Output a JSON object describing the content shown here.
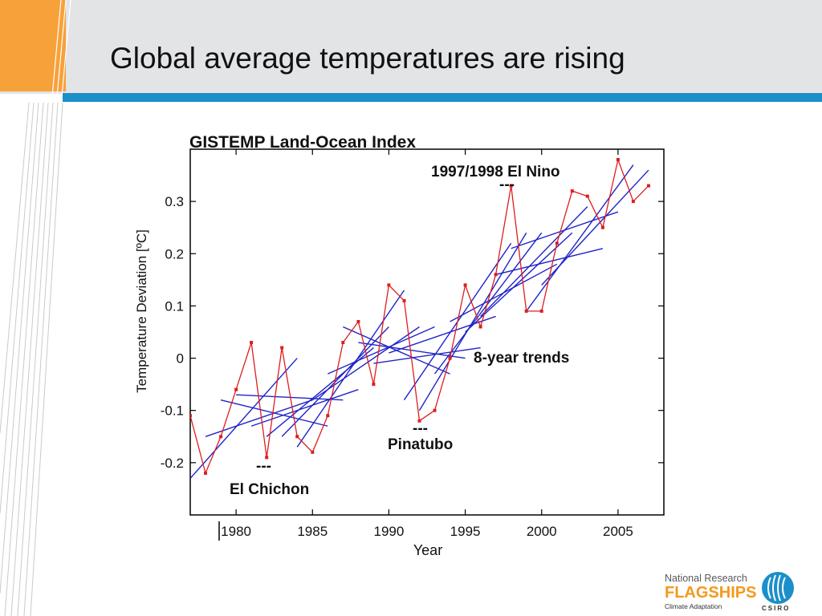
{
  "slide": {
    "title": "Global average temperatures are rising"
  },
  "colors": {
    "header_gray": "#e3e4e6",
    "orange_accent": "#f7a13a",
    "blue_band": "#1a8fc9",
    "data_series": "#dd1e1e",
    "trend_lines": "#1f24c8"
  },
  "chart_data": {
    "type": "line",
    "title": "GISTEMP Land-Ocean Index",
    "xlabel": "Year",
    "ylabel": "Temperature Deviation [ºC]",
    "xlim": [
      1977,
      2008
    ],
    "ylim": [
      -0.3,
      0.4
    ],
    "xticks": [
      "1980",
      "1985",
      "1990",
      "1995",
      "2000",
      "2005"
    ],
    "yticks": [
      "-0.2",
      "-0.1",
      "0",
      "0.1",
      "0.2",
      "0.3"
    ],
    "grid": false,
    "x": [
      1977,
      1978,
      1979,
      1980,
      1981,
      1982,
      1983,
      1984,
      1985,
      1986,
      1987,
      1988,
      1989,
      1990,
      1991,
      1992,
      1993,
      1994,
      1995,
      1996,
      1997,
      1998,
      1999,
      2000,
      2001,
      2002,
      2003,
      2004,
      2005,
      2006,
      2007
    ],
    "series": [
      {
        "values": [
          -0.11,
          -0.22,
          -0.15,
          -0.06,
          0.03,
          -0.19,
          0.02,
          -0.15,
          -0.18,
          -0.11,
          0.03,
          0.07,
          -0.05,
          0.14,
          0.11,
          -0.12,
          -0.1,
          0.0,
          0.14,
          0.06,
          0.16,
          0.33,
          0.09,
          0.09,
          0.22,
          0.32,
          0.31,
          0.25,
          0.38,
          0.3,
          0.33
        ]
      }
    ],
    "trend_lines": [
      {
        "start": 1977,
        "end": 1984,
        "y0": -0.23,
        "y1": 0.0
      },
      {
        "start": 1978,
        "end": 1985,
        "y0": -0.15,
        "y1": -0.08
      },
      {
        "start": 1979,
        "end": 1986,
        "y0": -0.08,
        "y1": -0.13
      },
      {
        "start": 1980,
        "end": 1987,
        "y0": -0.07,
        "y1": -0.08
      },
      {
        "start": 1981,
        "end": 1988,
        "y0": -0.13,
        "y1": -0.06
      },
      {
        "start": 1982,
        "end": 1989,
        "y0": -0.15,
        "y1": 0.02
      },
      {
        "start": 1983,
        "end": 1990,
        "y0": -0.15,
        "y1": 0.06
      },
      {
        "start": 1984,
        "end": 1991,
        "y0": -0.17,
        "y1": 0.13
      },
      {
        "start": 1985,
        "end": 1992,
        "y0": -0.08,
        "y1": 0.06
      },
      {
        "start": 1986,
        "end": 1993,
        "y0": -0.03,
        "y1": 0.06
      },
      {
        "start": 1987,
        "end": 1994,
        "y0": 0.06,
        "y1": -0.03
      },
      {
        "start": 1988,
        "end": 1995,
        "y0": 0.03,
        "y1": 0.0
      },
      {
        "start": 1989,
        "end": 1996,
        "y0": -0.01,
        "y1": 0.02
      },
      {
        "start": 1990,
        "end": 1997,
        "y0": 0.01,
        "y1": 0.08
      },
      {
        "start": 1991,
        "end": 1998,
        "y0": -0.08,
        "y1": 0.22
      },
      {
        "start": 1992,
        "end": 1999,
        "y0": -0.1,
        "y1": 0.24
      },
      {
        "start": 1993,
        "end": 2000,
        "y0": -0.03,
        "y1": 0.24
      },
      {
        "start": 1994,
        "end": 2001,
        "y0": 0.07,
        "y1": 0.18
      },
      {
        "start": 1995,
        "end": 2002,
        "y0": 0.05,
        "y1": 0.24
      },
      {
        "start": 1996,
        "end": 2003,
        "y0": 0.08,
        "y1": 0.29
      },
      {
        "start": 1997,
        "end": 2004,
        "y0": 0.16,
        "y1": 0.21
      },
      {
        "start": 1998,
        "end": 2005,
        "y0": 0.21,
        "y1": 0.28
      },
      {
        "start": 1999,
        "end": 2006,
        "y0": 0.09,
        "y1": 0.37
      },
      {
        "start": 2000,
        "end": 2007,
        "y0": 0.14,
        "y1": 0.36
      }
    ],
    "annotations": {
      "el_nino": "1997/1998 El Nino",
      "el_nino_dash": "---",
      "pinatubo": "Pinatubo",
      "pinatubo_dash": "---",
      "el_chichon": "El Chichon",
      "el_chichon_dash": "---",
      "trends": "8-year trends"
    }
  },
  "logo": {
    "line1": "National Research",
    "line2": "FLAGSHIPS",
    "line3": "Climate Adaptation",
    "org": "CSIRO",
    "icon": "csiro-globe-icon"
  }
}
